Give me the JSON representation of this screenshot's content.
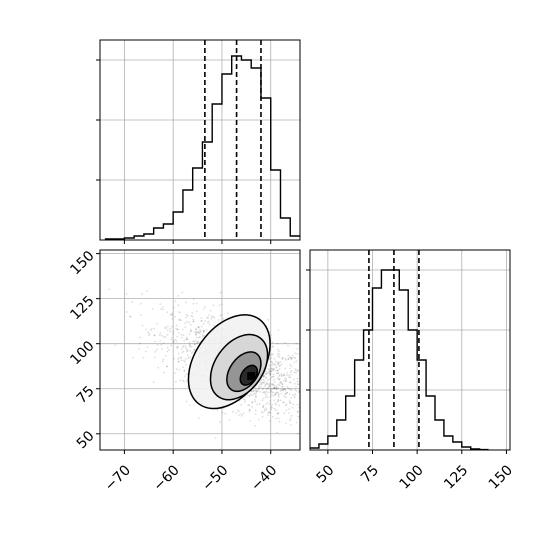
{
  "chart_data": [
    {
      "type": "histogram",
      "panel": "top-left",
      "title": "",
      "xlabel": "",
      "ylabel": "",
      "xlim": [
        -75,
        -34
      ],
      "ylim": [
        0,
        1
      ],
      "grid": true,
      "bin_edges": [
        -74,
        -72,
        -70,
        -68,
        -66,
        -64,
        -62,
        -60,
        -58,
        -56,
        -54,
        -52,
        -50,
        -48,
        -46,
        -44,
        -42,
        -40,
        -38,
        -36,
        -34
      ],
      "counts": [
        0.005,
        0.005,
        0.01,
        0.02,
        0.03,
        0.06,
        0.08,
        0.14,
        0.25,
        0.36,
        0.49,
        0.68,
        0.83,
        0.92,
        0.9,
        0.86,
        0.71,
        0.35,
        0.11,
        0.02
      ],
      "quantiles": [
        -53.5,
        -47,
        -42
      ]
    },
    {
      "type": "scatter+contour",
      "panel": "bottom-left",
      "title": "",
      "xlabel": "",
      "ylabel": "",
      "xlim": [
        -75,
        -34
      ],
      "ylim": [
        41,
        152
      ],
      "grid": true,
      "x_ticks": [
        "−70",
        "−60",
        "−50",
        "−40"
      ],
      "y_ticks": [
        "50",
        "75",
        "100",
        "125",
        "150"
      ],
      "peak": {
        "x": -44,
        "y": 82
      }
    },
    {
      "type": "histogram",
      "panel": "bottom-right",
      "title": "",
      "xlabel": "",
      "ylabel": "",
      "xlim": [
        40,
        152
      ],
      "ylim": [
        0,
        1
      ],
      "grid": true,
      "x_ticks": [
        "50",
        "75",
        "100",
        "125",
        "150"
      ],
      "bin_edges": [
        40,
        45,
        50,
        55,
        60,
        65,
        70,
        75,
        80,
        85,
        90,
        95,
        100,
        105,
        110,
        115,
        120,
        125,
        130,
        135,
        140
      ],
      "counts": [
        0.01,
        0.03,
        0.07,
        0.15,
        0.27,
        0.45,
        0.6,
        0.81,
        0.9,
        0.9,
        0.8,
        0.6,
        0.45,
        0.27,
        0.15,
        0.07,
        0.04,
        0.015,
        0.005,
        0.002
      ],
      "quantiles": [
        73,
        87,
        101
      ]
    }
  ]
}
